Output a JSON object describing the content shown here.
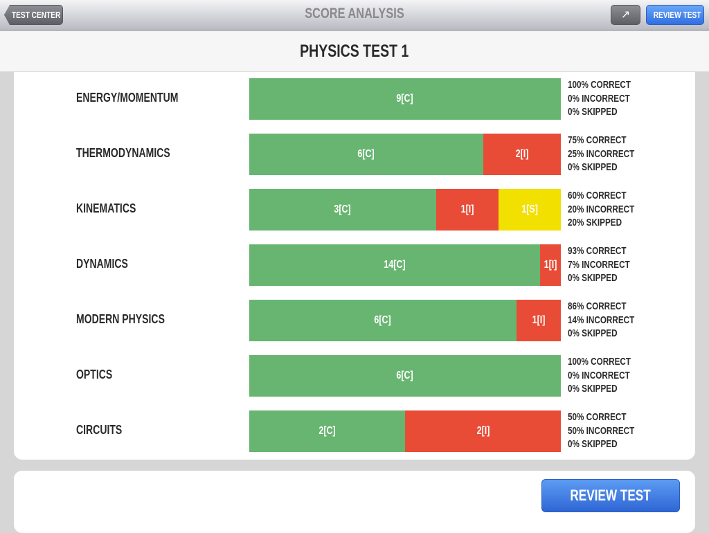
{
  "nav": {
    "back_label": "TEST CENTER",
    "title": "SCORE ANALYSIS",
    "share_icon": "share-icon",
    "review_label": "REVIEW TEST"
  },
  "header": {
    "title": "PHYSICS TEST 1"
  },
  "colors": {
    "correct": "#68b571",
    "incorrect": "#e84c37",
    "skipped": "#f2e000"
  },
  "topics": [
    {
      "name": "ENERGY/MOMENTUM",
      "correct": 9,
      "incorrect": 0,
      "skipped": 0,
      "correct_text": "100% CORRECT",
      "incorrect_text": "0% INCORRECT",
      "skipped_text": "0% SKIPPED"
    },
    {
      "name": "THERMODYNAMICS",
      "correct": 6,
      "incorrect": 2,
      "skipped": 0,
      "correct_text": "75% CORRECT",
      "incorrect_text": "25% INCORRECT",
      "skipped_text": "0% SKIPPED"
    },
    {
      "name": "KINEMATICS",
      "correct": 3,
      "incorrect": 1,
      "skipped": 1,
      "correct_text": "60% CORRECT",
      "incorrect_text": "20% INCORRECT",
      "skipped_text": "20% SKIPPED"
    },
    {
      "name": "DYNAMICS",
      "correct": 14,
      "incorrect": 1,
      "skipped": 0,
      "correct_text": "93% CORRECT",
      "incorrect_text": "7% INCORRECT",
      "skipped_text": "0% SKIPPED"
    },
    {
      "name": "MODERN PHYSICS",
      "correct": 6,
      "incorrect": 1,
      "skipped": 0,
      "correct_text": "86% CORRECT",
      "incorrect_text": "14% INCORRECT",
      "skipped_text": "0% SKIPPED"
    },
    {
      "name": "OPTICS",
      "correct": 6,
      "incorrect": 0,
      "skipped": 0,
      "correct_text": "100% CORRECT",
      "incorrect_text": "0% INCORRECT",
      "skipped_text": "0% SKIPPED"
    },
    {
      "name": "CIRCUITS",
      "correct": 2,
      "incorrect": 2,
      "skipped": 0,
      "correct_text": "50% CORRECT",
      "incorrect_text": "50% INCORRECT",
      "skipped_text": "0% SKIPPED"
    }
  ],
  "footer": {
    "review_label": "REVIEW TEST"
  }
}
